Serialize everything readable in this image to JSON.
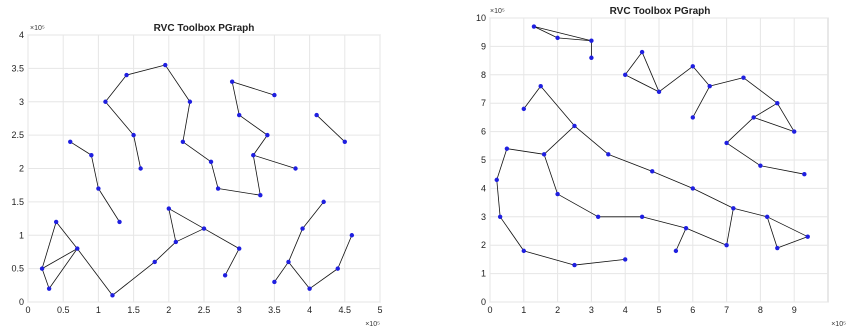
{
  "chart_data": [
    {
      "type": "scatter",
      "title": "RVC Toolbox PGraph",
      "xlabel": "",
      "ylabel": "",
      "xlim": [
        0,
        500000
      ],
      "ylim": [
        0,
        400000
      ],
      "x_ticks": [
        0,
        50000,
        100000,
        150000,
        200000,
        250000,
        300000,
        350000,
        400000,
        450000,
        500000
      ],
      "x_tick_labels": [
        "0",
        "0.5",
        "1",
        "1.5",
        "2",
        "2.5",
        "3",
        "3.5",
        "4",
        "4.5",
        "5"
      ],
      "y_ticks": [
        0,
        50000,
        100000,
        150000,
        200000,
        250000,
        300000,
        350000,
        400000
      ],
      "y_tick_labels": [
        "0",
        "0.5",
        "1",
        "1.5",
        "2",
        "2.5",
        "3",
        "3.5",
        "4"
      ],
      "x_exponent_label": "×10⁵",
      "y_exponent_label": "×10⁵",
      "grid": true,
      "node_color": "#1f1fe0",
      "edge_color": "#111111",
      "series": [
        {
          "nodes": [
            [
              140000,
              340000
            ],
            [
              195000,
              355000
            ],
            [
              110000,
              300000
            ],
            [
              60000,
              240000
            ],
            [
              100000,
              170000
            ],
            [
              40000,
              120000
            ],
            [
              20000,
              50000
            ],
            [
              30000,
              20000
            ],
            [
              120000,
              10000
            ],
            [
              200000,
              140000
            ],
            [
              260000,
              210000
            ],
            [
              300000,
              280000
            ],
            [
              340000,
              250000
            ],
            [
              380000,
              200000
            ],
            [
              420000,
              150000
            ],
            [
              460000,
              100000
            ],
            [
              440000,
              50000
            ],
            [
              400000,
              20000
            ],
            [
              350000,
              30000
            ],
            [
              300000,
              80000
            ],
            [
              250000,
              110000
            ],
            [
              180000,
              60000
            ],
            [
              160000,
              200000
            ],
            [
              230000,
              300000
            ],
            [
              290000,
              330000
            ],
            [
              350000,
              310000
            ],
            [
              410000,
              280000
            ],
            [
              450000,
              240000
            ],
            [
              390000,
              110000
            ],
            [
              330000,
              160000
            ],
            [
              270000,
              170000
            ],
            [
              220000,
              240000
            ],
            [
              150000,
              250000
            ],
            [
              90000,
              220000
            ],
            [
              70000,
              80000
            ],
            [
              130000,
              120000
            ],
            [
              210000,
              90000
            ],
            [
              280000,
              40000
            ],
            [
              320000,
              220000
            ],
            [
              370000,
              60000
            ]
          ]
        }
      ]
    },
    {
      "type": "scatter",
      "title": "RVC Toolbox PGraph",
      "xlabel": "",
      "ylabel": "",
      "xlim": [
        0,
        1000000
      ],
      "ylim": [
        0,
        1000000
      ],
      "x_ticks": [
        0,
        100000,
        200000,
        300000,
        400000,
        500000,
        600000,
        700000,
        800000,
        900000
      ],
      "x_tick_labels": [
        "0",
        "1",
        "2",
        "3",
        "4",
        "5",
        "6",
        "7",
        "8",
        "9"
      ],
      "y_ticks": [
        0,
        100000,
        200000,
        300000,
        400000,
        500000,
        600000,
        700000,
        800000,
        900000,
        1000000
      ],
      "y_tick_labels": [
        "0",
        "1",
        "2",
        "3",
        "4",
        "5",
        "6",
        "7",
        "8",
        "9",
        "10"
      ],
      "x_exponent_label": "×10⁵",
      "y_exponent_label": "×10⁵",
      "grid": true,
      "node_color": "#1f1fe0",
      "edge_color": "#111111",
      "series": [
        {
          "nodes": [
            [
              130000,
              970000
            ],
            [
              200000,
              930000
            ],
            [
              300000,
              920000
            ],
            [
              450000,
              880000
            ],
            [
              600000,
              830000
            ],
            [
              750000,
              790000
            ],
            [
              850000,
              700000
            ],
            [
              900000,
              600000
            ],
            [
              930000,
              450000
            ],
            [
              940000,
              230000
            ],
            [
              850000,
              190000
            ],
            [
              700000,
              200000
            ],
            [
              550000,
              180000
            ],
            [
              400000,
              150000
            ],
            [
              250000,
              130000
            ],
            [
              100000,
              180000
            ],
            [
              30000,
              300000
            ],
            [
              20000,
              430000
            ],
            [
              50000,
              540000
            ],
            [
              100000,
              680000
            ],
            [
              150000,
              760000
            ],
            [
              250000,
              620000
            ],
            [
              350000,
              520000
            ],
            [
              480000,
              460000
            ],
            [
              600000,
              400000
            ],
            [
              720000,
              330000
            ],
            [
              800000,
              480000
            ],
            [
              700000,
              560000
            ],
            [
              600000,
              650000
            ],
            [
              500000,
              740000
            ],
            [
              400000,
              800000
            ],
            [
              300000,
              860000
            ],
            [
              650000,
              760000
            ],
            [
              780000,
              650000
            ],
            [
              200000,
              380000
            ],
            [
              320000,
              300000
            ],
            [
              450000,
              300000
            ],
            [
              580000,
              260000
            ],
            [
              820000,
              300000
            ],
            [
              160000,
              520000
            ]
          ]
        }
      ]
    }
  ]
}
